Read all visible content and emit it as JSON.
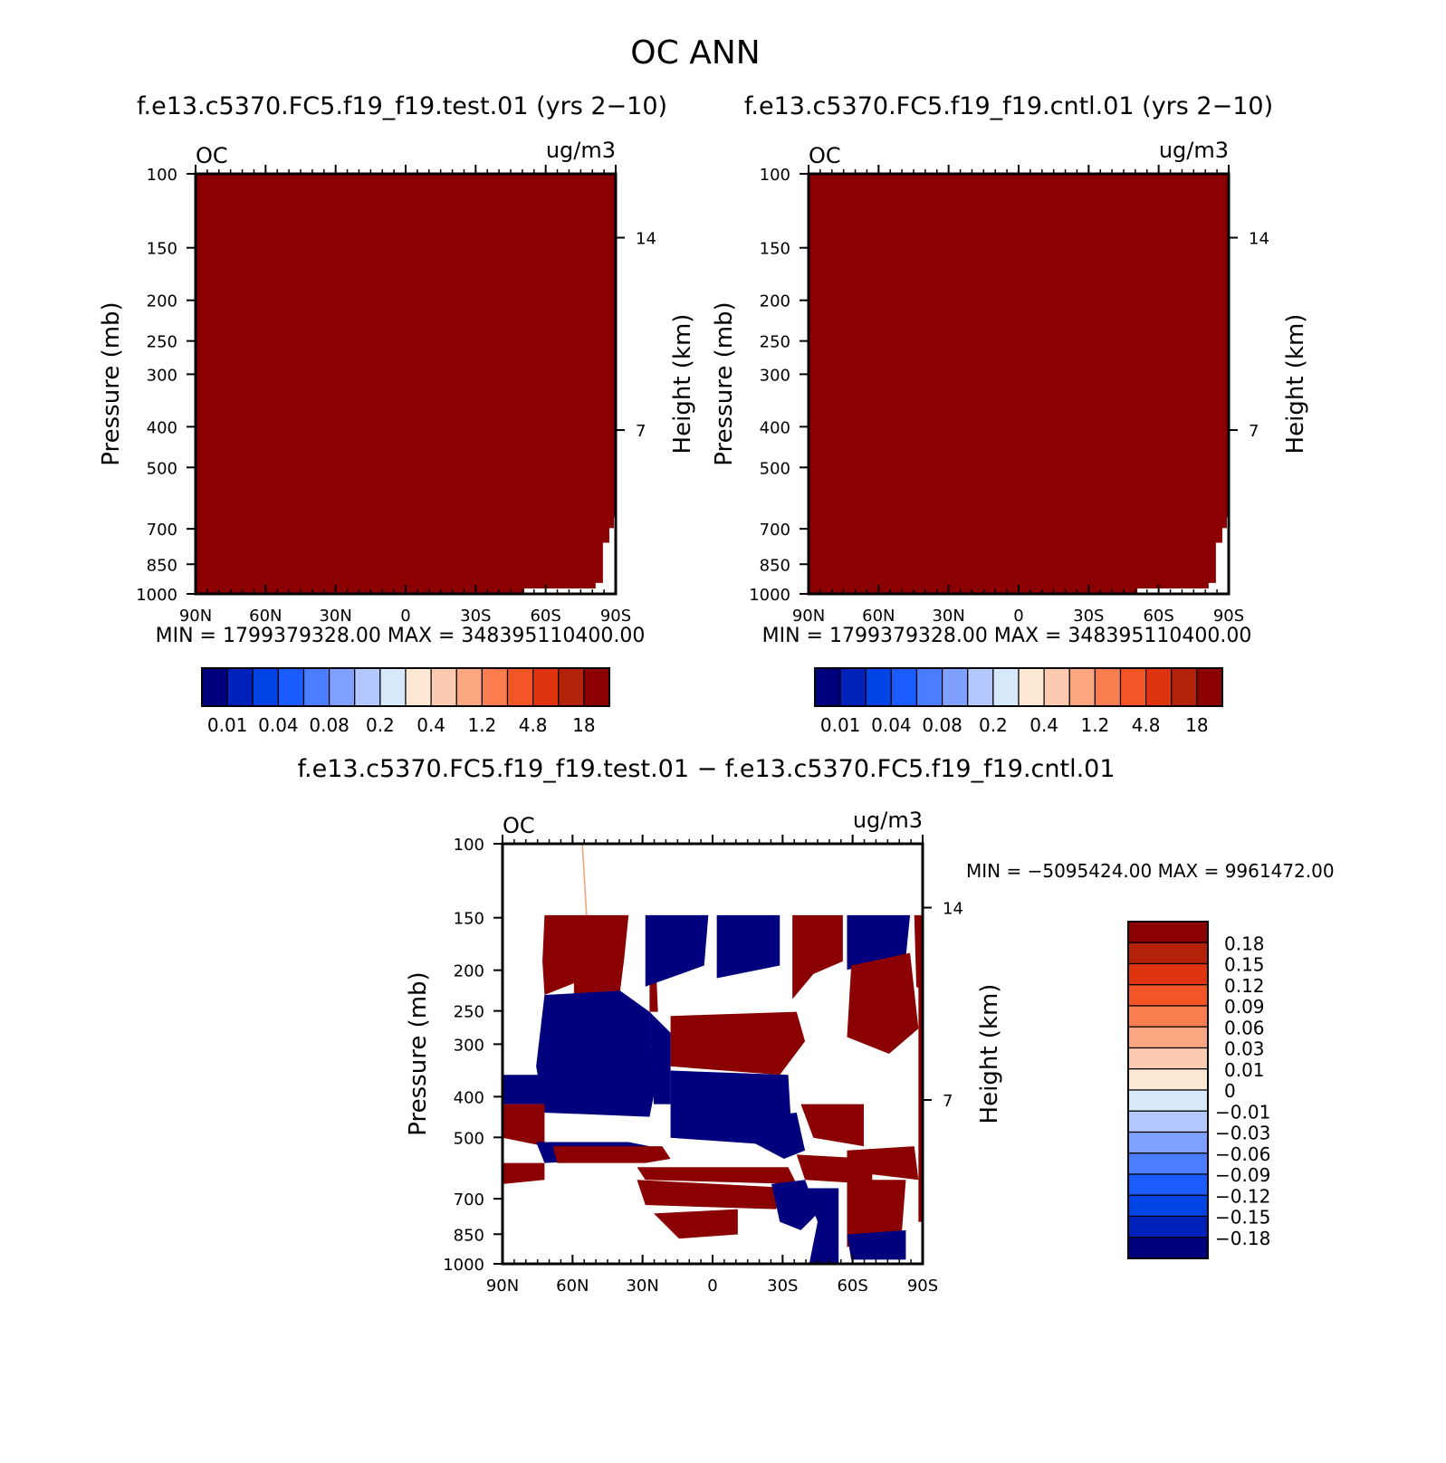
{
  "main_title": "OC ANN",
  "panels": {
    "test": {
      "title": "f.e13.c5370.FC5.f19_f19.test.01 (yrs 2−10)",
      "var": "OC",
      "units": "ug/m3",
      "min_max": "MIN = 1799379328.00   MAX = 348395110400.00"
    },
    "cntl": {
      "title": "f.e13.c5370.FC5.f19_f19.cntl.01 (yrs 2−10)",
      "var": "OC",
      "units": "ug/m3",
      "min_max": "MIN = 1799379328.00   MAX = 348395110400.00"
    },
    "diff": {
      "title": "f.e13.c5370.FC5.f19_f19.test.01 − f.e13.c5370.FC5.f19_f19.cntl.01",
      "var": "OC",
      "units": "ug/m3",
      "min_max": "MIN = −5095424.00   MAX = 9961472.00"
    }
  },
  "chart_data": [
    {
      "type": "heatmap",
      "name": "test",
      "x_ticks": [
        "90N",
        "60N",
        "30N",
        "0",
        "30S",
        "60S",
        "90S"
      ],
      "y_ticks": [
        "100",
        "150",
        "200",
        "250",
        "300",
        "400",
        "500",
        "700",
        "850",
        "1000"
      ],
      "y_right_ticks": [
        "14",
        "7"
      ],
      "ylabel": "Pressure (mb)",
      "ylabel_right": "Height (km)",
      "fill_color": "#8b0000",
      "colorbar_labels": [
        "0.01",
        "0.04",
        "0.08",
        "0.2",
        "0.4",
        "1.2",
        "4.8",
        "18"
      ]
    },
    {
      "type": "heatmap",
      "name": "cntl",
      "x_ticks": [
        "90N",
        "60N",
        "30N",
        "0",
        "30S",
        "60S",
        "90S"
      ],
      "y_ticks": [
        "100",
        "150",
        "200",
        "250",
        "300",
        "400",
        "500",
        "700",
        "850",
        "1000"
      ],
      "y_right_ticks": [
        "14",
        "7"
      ],
      "ylabel": "Pressure (mb)",
      "ylabel_right": "Height (km)",
      "fill_color": "#8b0000",
      "colorbar_labels": [
        "0.01",
        "0.04",
        "0.08",
        "0.2",
        "0.4",
        "1.2",
        "4.8",
        "18"
      ]
    },
    {
      "type": "heatmap",
      "name": "difference",
      "x_ticks": [
        "90N",
        "60N",
        "30N",
        "0",
        "30S",
        "60S",
        "90S"
      ],
      "y_ticks": [
        "100",
        "150",
        "200",
        "250",
        "300",
        "400",
        "500",
        "700",
        "850",
        "1000"
      ],
      "y_right_ticks": [
        "14",
        "7"
      ],
      "ylabel": "Pressure (mb)",
      "ylabel_right": "Height (km)",
      "colorbar_labels": [
        "0.18",
        "0.15",
        "0.12",
        "0.09",
        "0.06",
        "0.03",
        "0.01",
        "0",
        "−0.01",
        "−0.03",
        "−0.06",
        "−0.09",
        "−0.12",
        "−0.15",
        "−0.18"
      ]
    }
  ],
  "colors": {
    "abs_colorbar": [
      "#00007f",
      "#0022bb",
      "#0044e6",
      "#1a5cff",
      "#4a7dff",
      "#7fa0ff",
      "#b3c8ff",
      "#d8e8fb",
      "#fde8d4",
      "#fccab0",
      "#fba680",
      "#f97d4f",
      "#f45526",
      "#de3510",
      "#b32208",
      "#8b0000"
    ],
    "diff_colorbar": [
      "#8b0000",
      "#b32208",
      "#de3510",
      "#f45526",
      "#f97d4f",
      "#fba680",
      "#fccab0",
      "#fde8d4",
      "#d8e8fb",
      "#b3c8ff",
      "#7fa0ff",
      "#4a7dff",
      "#1a5cff",
      "#0044e6",
      "#0022bb",
      "#00007f"
    ],
    "pos": "#8b0000",
    "neg": "#00007f"
  }
}
